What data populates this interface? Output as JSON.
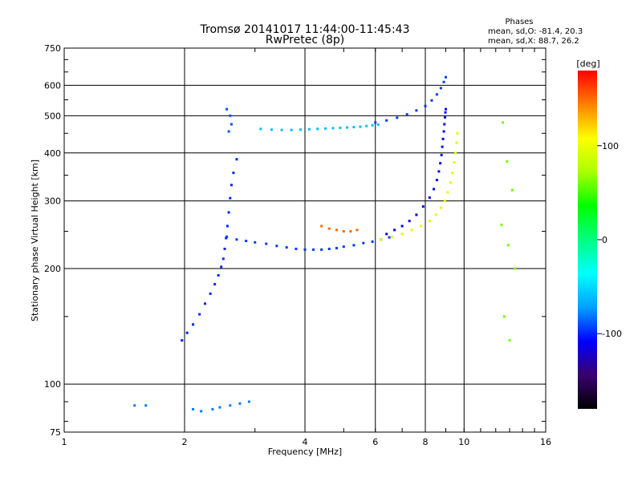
{
  "header": {
    "title_line1": "Tromsø 20141017 11:44:00-11:45:43",
    "title_line2": "RwPretec (8p)",
    "phases_title": "Phases",
    "phases_o": "mean, sd,O: -81.4, 20.3",
    "phases_x": "mean, sd,X:  88.7, 26.2"
  },
  "colorbar": {
    "label": "[deg]",
    "ticks": [
      {
        "value": 100,
        "label": "100"
      },
      {
        "value": 0,
        "label": "0"
      },
      {
        "value": -100,
        "label": "-100"
      }
    ],
    "range": [
      -180,
      180
    ],
    "colors": [
      "#000000",
      "#3a0070",
      "#0000ff",
      "#00a0ff",
      "#00ffff",
      "#00ff80",
      "#00ff00",
      "#aaff00",
      "#ffff00",
      "#ff8000",
      "#ff0000"
    ]
  },
  "chart_data": {
    "type": "scatter",
    "title": "Tromsø 20141017 11:44:00-11:45:43",
    "subtitle": "RwPretec (8p)",
    "xlabel": "Frequency [MHz]",
    "ylabel": "Stationary phase Virtual Height [km]",
    "xscale": "log",
    "yscale": "log",
    "xlim": [
      1,
      16
    ],
    "ylim": [
      75,
      750
    ],
    "grid": true,
    "xticks": [
      {
        "value": 1,
        "label": "1"
      },
      {
        "value": 2,
        "label": "2"
      },
      {
        "value": 4,
        "label": "4"
      },
      {
        "value": 6,
        "label": "6"
      },
      {
        "value": 8,
        "label": "8"
      },
      {
        "value": 10,
        "label": "10"
      },
      {
        "value": 16,
        "label": "16"
      }
    ],
    "yticks": [
      {
        "value": 75,
        "label": "75"
      },
      {
        "value": 100,
        "label": "100"
      },
      {
        "value": 200,
        "label": "200"
      },
      {
        "value": 300,
        "label": "300"
      },
      {
        "value": 400,
        "label": "400"
      },
      {
        "value": 500,
        "label": "500"
      },
      {
        "value": 600,
        "label": "600"
      },
      {
        "value": 750,
        "label": "750"
      }
    ],
    "color_by": "phase_deg",
    "traces": [
      {
        "x": [
          1.97,
          2.03,
          2.1,
          2.18,
          2.25,
          2.32,
          2.38,
          2.43,
          2.47,
          2.5,
          2.52,
          2.54,
          2.56,
          2.58,
          2.6,
          2.62,
          2.65,
          2.7
        ],
        "y": [
          130,
          136,
          143,
          152,
          162,
          172,
          182,
          192,
          202,
          212,
          225,
          240,
          258,
          280,
          305,
          330,
          355,
          385
        ],
        "phase": -100
      },
      {
        "x": [
          2.55,
          2.7,
          2.85,
          3.0,
          3.2,
          3.4,
          3.6,
          3.8,
          4.0,
          4.2,
          4.4,
          4.6,
          4.8,
          5.0,
          5.3,
          5.6,
          5.9,
          6.2,
          6.5
        ],
        "y": [
          242,
          238,
          236,
          234,
          232,
          229,
          227,
          225,
          224,
          224,
          224,
          225,
          226,
          228,
          230,
          233,
          235,
          238,
          241
        ],
        "phase": -95
      },
      {
        "x": [
          6.4,
          6.7,
          7.0,
          7.3,
          7.6,
          7.9,
          8.2,
          8.4,
          8.55,
          8.65,
          8.72,
          8.78,
          8.82,
          8.86,
          8.9,
          8.93,
          8.96,
          8.98,
          9.0
        ],
        "y": [
          246,
          252,
          258,
          266,
          276,
          290,
          306,
          322,
          340,
          358,
          376,
          395,
          415,
          435,
          455,
          475,
          495,
          510,
          520
        ],
        "phase": -110
      },
      {
        "x": [
          6.2,
          6.6,
          7.0,
          7.4,
          7.8,
          8.2,
          8.5,
          8.75,
          8.95,
          9.1,
          9.25,
          9.35,
          9.45,
          9.52,
          9.58,
          9.62
        ],
        "y": [
          238,
          242,
          246,
          252,
          258,
          266,
          276,
          288,
          300,
          316,
          335,
          355,
          378,
          400,
          425,
          450
        ],
        "phase": 95
      },
      {
        "x": [
          4.4,
          4.6,
          4.8,
          5.0,
          5.2,
          5.4
        ],
        "y": [
          258,
          254,
          252,
          250,
          250,
          252
        ],
        "phase": 150
      },
      {
        "x": [
          3.1,
          3.3,
          3.5,
          3.7,
          3.9,
          4.1,
          4.3,
          4.5,
          4.7,
          4.9,
          5.1,
          5.3,
          5.5,
          5.7,
          5.9,
          6.1
        ],
        "y": [
          462,
          460,
          459,
          459,
          460,
          461,
          462,
          463,
          464,
          465,
          466,
          467,
          468,
          470,
          472,
          474
        ],
        "phase": -60
      },
      {
        "x": [
          6.0,
          6.4,
          6.8,
          7.2,
          7.6,
          8.0,
          8.3,
          8.55,
          8.75,
          8.9,
          9.0
        ],
        "y": [
          480,
          486,
          494,
          504,
          516,
          530,
          548,
          568,
          590,
          612,
          630
        ],
        "phase": -95
      },
      {
        "x": [
          2.55,
          2.6,
          2.62,
          2.58
        ],
        "y": [
          520,
          500,
          475,
          455
        ],
        "phase": -90
      },
      {
        "x": [
          1.5,
          1.6,
          2.1,
          2.2,
          2.35,
          2.45,
          2.6,
          2.75,
          2.9
        ],
        "y": [
          88,
          88,
          86,
          85,
          86,
          87,
          88,
          89,
          90
        ],
        "phase": -80
      },
      {
        "x": [
          12.5,
          12.8,
          13.2,
          12.4,
          12.9,
          13.4,
          12.6,
          13.0
        ],
        "y": [
          480,
          380,
          320,
          260,
          230,
          200,
          150,
          130
        ],
        "phase": 60
      }
    ]
  }
}
